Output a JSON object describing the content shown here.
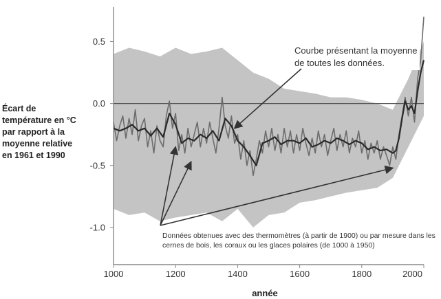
{
  "chart_data": {
    "type": "line",
    "xlabel": "année",
    "ylabel_lines": [
      "Écart de",
      "température en °C",
      "par rapport à la",
      "moyenne relative",
      "en 1961 et 1990"
    ],
    "xlim": [
      1000,
      2000
    ],
    "ylim": [
      -1.3,
      0.78
    ],
    "x_ticks": [
      1000,
      1200,
      1400,
      1600,
      1800,
      2000
    ],
    "y_ticks": [
      0.5,
      0.0,
      -0.5,
      -1.0
    ],
    "y_tick_labels": [
      "0.5",
      "0.0",
      "-0.5",
      "-1.0"
    ],
    "reference_line_y": 0.0,
    "grid": false,
    "colors": {
      "uncertainty_band": "#c4c4c4",
      "raw_data": "#6c6c6c",
      "mean_curve": "#2a2a2a",
      "reference_line": "#555555",
      "axis": "#888888"
    },
    "series": [
      {
        "role": "mean_curve",
        "x": [
          1000,
          1020,
          1040,
          1060,
          1080,
          1100,
          1120,
          1140,
          1160,
          1180,
          1200,
          1220,
          1240,
          1260,
          1280,
          1300,
          1320,
          1340,
          1360,
          1380,
          1400,
          1420,
          1440,
          1460,
          1480,
          1500,
          1520,
          1540,
          1560,
          1580,
          1600,
          1620,
          1640,
          1660,
          1680,
          1700,
          1720,
          1740,
          1760,
          1780,
          1800,
          1820,
          1840,
          1860,
          1880,
          1900,
          1910,
          1920,
          1930,
          1940,
          1950,
          1960,
          1970,
          1980,
          1990,
          2000
        ],
        "y": [
          -0.2,
          -0.22,
          -0.2,
          -0.17,
          -0.22,
          -0.2,
          -0.26,
          -0.2,
          -0.27,
          -0.08,
          -0.17,
          -0.32,
          -0.28,
          -0.3,
          -0.25,
          -0.28,
          -0.22,
          -0.3,
          -0.12,
          -0.18,
          -0.3,
          -0.35,
          -0.42,
          -0.5,
          -0.32,
          -0.3,
          -0.27,
          -0.33,
          -0.3,
          -0.3,
          -0.32,
          -0.28,
          -0.35,
          -0.33,
          -0.3,
          -0.32,
          -0.28,
          -0.3,
          -0.33,
          -0.3,
          -0.32,
          -0.37,
          -0.35,
          -0.38,
          -0.37,
          -0.4,
          -0.38,
          -0.28,
          -0.12,
          0.02,
          -0.05,
          -0.02,
          -0.08,
          0.1,
          0.25,
          0.35
        ]
      },
      {
        "role": "raw_data",
        "x": [
          1000,
          1010,
          1020,
          1030,
          1040,
          1050,
          1060,
          1070,
          1080,
          1090,
          1100,
          1110,
          1120,
          1130,
          1140,
          1150,
          1160,
          1170,
          1180,
          1190,
          1200,
          1210,
          1220,
          1230,
          1240,
          1250,
          1260,
          1270,
          1280,
          1290,
          1300,
          1310,
          1320,
          1330,
          1340,
          1350,
          1360,
          1370,
          1380,
          1390,
          1400,
          1410,
          1420,
          1430,
          1440,
          1450,
          1460,
          1470,
          1480,
          1490,
          1500,
          1510,
          1520,
          1530,
          1540,
          1550,
          1560,
          1570,
          1580,
          1590,
          1600,
          1610,
          1620,
          1630,
          1640,
          1650,
          1660,
          1670,
          1680,
          1690,
          1700,
          1710,
          1720,
          1730,
          1740,
          1750,
          1760,
          1770,
          1780,
          1790,
          1800,
          1810,
          1820,
          1830,
          1840,
          1850,
          1860,
          1870,
          1880,
          1890,
          1900,
          1910,
          1920,
          1930,
          1940,
          1950,
          1960,
          1970,
          1980,
          1990,
          2000
        ],
        "y": [
          -0.15,
          -0.3,
          -0.18,
          -0.1,
          -0.28,
          -0.12,
          -0.25,
          -0.05,
          -0.3,
          -0.18,
          -0.12,
          -0.35,
          -0.22,
          -0.4,
          -0.18,
          -0.3,
          -0.35,
          -0.1,
          0.02,
          -0.2,
          -0.08,
          -0.38,
          -0.25,
          -0.4,
          -0.2,
          -0.35,
          -0.25,
          -0.15,
          -0.35,
          -0.2,
          -0.32,
          -0.15,
          -0.28,
          -0.4,
          -0.2,
          0.05,
          -0.18,
          -0.28,
          -0.1,
          -0.32,
          -0.25,
          -0.45,
          -0.3,
          -0.5,
          -0.38,
          -0.58,
          -0.45,
          -0.3,
          -0.4,
          -0.22,
          -0.35,
          -0.2,
          -0.38,
          -0.25,
          -0.4,
          -0.2,
          -0.35,
          -0.22,
          -0.4,
          -0.25,
          -0.38,
          -0.2,
          -0.32,
          -0.42,
          -0.28,
          -0.4,
          -0.22,
          -0.35,
          -0.25,
          -0.42,
          -0.3,
          -0.2,
          -0.38,
          -0.25,
          -0.35,
          -0.22,
          -0.4,
          -0.28,
          -0.35,
          -0.22,
          -0.4,
          -0.3,
          -0.45,
          -0.32,
          -0.4,
          -0.3,
          -0.45,
          -0.35,
          -0.42,
          -0.5,
          -0.35,
          -0.45,
          -0.25,
          -0.1,
          0.05,
          -0.1,
          0.05,
          -0.15,
          0.2,
          0.35,
          0.7
        ]
      },
      {
        "role": "uncertainty_upper",
        "x": [
          1000,
          1050,
          1100,
          1150,
          1200,
          1250,
          1300,
          1350,
          1400,
          1450,
          1500,
          1550,
          1600,
          1650,
          1700,
          1750,
          1800,
          1850,
          1900,
          1950,
          2000
        ],
        "y": [
          0.4,
          0.45,
          0.42,
          0.38,
          0.45,
          0.4,
          0.42,
          0.45,
          0.35,
          0.25,
          0.2,
          0.12,
          0.1,
          0.08,
          0.05,
          0.05,
          0.03,
          0.0,
          -0.05,
          0.2,
          0.5
        ]
      },
      {
        "role": "uncertainty_lower",
        "x": [
          1000,
          1050,
          1100,
          1150,
          1200,
          1250,
          1300,
          1350,
          1400,
          1450,
          1500,
          1550,
          1600,
          1650,
          1700,
          1750,
          1800,
          1850,
          1900,
          1950,
          2000
        ],
        "y": [
          -0.85,
          -0.9,
          -0.88,
          -0.95,
          -0.92,
          -0.9,
          -0.88,
          -0.95,
          -0.85,
          -1.0,
          -0.9,
          -0.88,
          -0.8,
          -0.78,
          -0.75,
          -0.72,
          -0.7,
          -0.68,
          -0.6,
          -0.35,
          -0.1
        ]
      }
    ],
    "annotations": [
      {
        "id": "mean",
        "lines": [
          "Courbe présentant la moyenne",
          "de toutes les données."
        ],
        "arrow_targets": [
          {
            "x": 1390,
            "y": -0.2
          }
        ]
      },
      {
        "id": "data",
        "lines": [
          "Données obtenues avec des thermomètres (à partir de 1900) ou par mesure dans les",
          "cernes de bois, les coraux ou les glaces polaires (de 1000 à 1950)"
        ],
        "arrow_targets": [
          {
            "x": 1200,
            "y": -0.35
          },
          {
            "x": 1250,
            "y": -0.47
          },
          {
            "x": 1900,
            "y": -0.52
          }
        ]
      }
    ]
  }
}
